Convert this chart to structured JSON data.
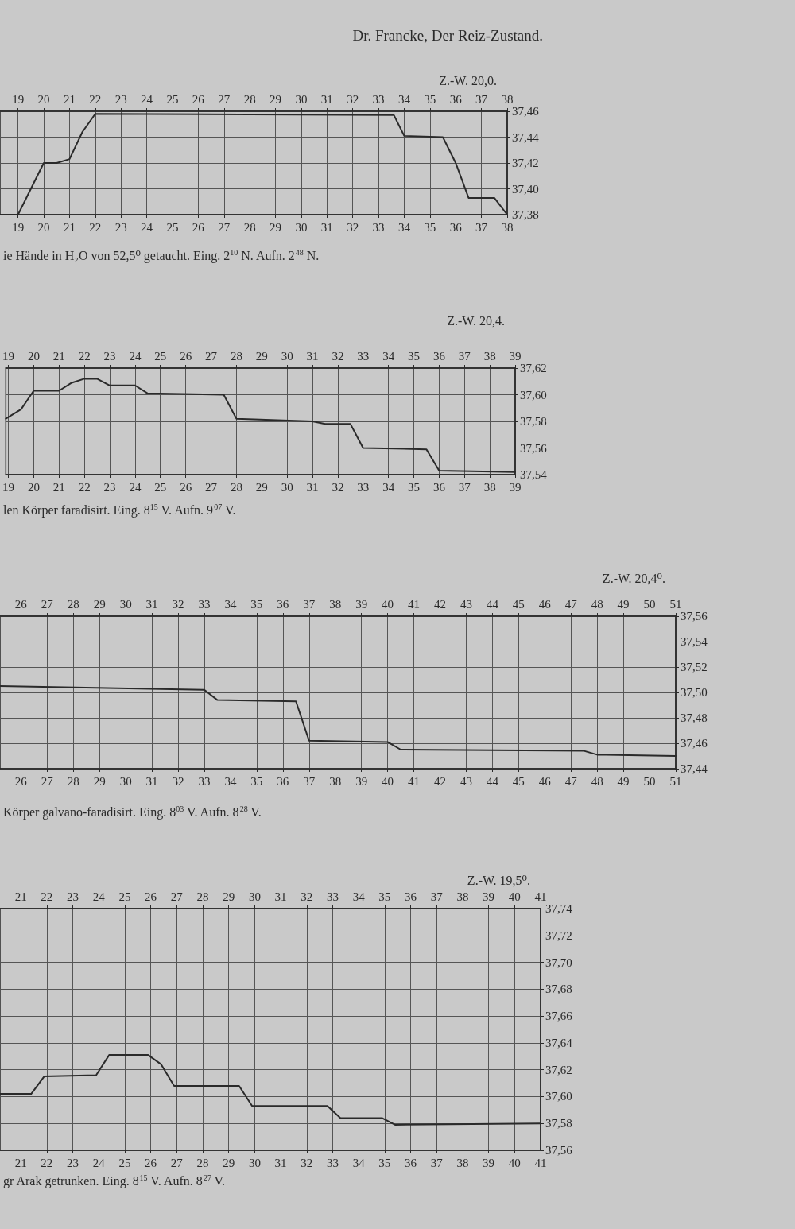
{
  "chart_data": [
    {
      "type": "line",
      "title": "Dr. Francke, Der Reiz-Zustand.",
      "subtitle": "Z.-W. 20,0.",
      "annotations": [
        "ie Hände in H₂O von 52,5⁰ getaucht. Eing. 2$^{10}$ N. Aufn. 2$^{48}$ N."
      ],
      "series": [
        {
          "color": "#2a2a2a",
          "x": [
            18.3,
            19,
            20,
            20.5,
            21,
            21.5,
            22,
            33.6,
            34,
            35.5,
            36,
            36.5,
            37.5,
            38
          ],
          "values": [
            37.38,
            37.38,
            37.42,
            37.42,
            37.423,
            37.444,
            37.458,
            37.457,
            37.441,
            37.44,
            37.42,
            37.393,
            37.393,
            37.38
          ]
        }
      ],
      "xlim": [
        18.3,
        38
      ],
      "xticks": [
        19,
        20,
        21,
        22,
        23,
        24,
        25,
        26,
        27,
        28,
        29,
        30,
        31,
        32,
        33,
        34,
        35,
        36,
        37,
        38
      ],
      "x2lim": [
        18.3,
        38
      ],
      "x2ticks": [
        19,
        20,
        21,
        22,
        23,
        24,
        25,
        26,
        27,
        28,
        29,
        30,
        31,
        32,
        33,
        34,
        35,
        36,
        37,
        38
      ],
      "ylim": [
        37.38,
        37.46
      ],
      "yticks": [
        {
          "value": 37.38,
          "label": "37,38"
        },
        {
          "value": 37.4,
          "label": "37,40"
        },
        {
          "value": 37.42,
          "label": "37,42"
        },
        {
          "value": 37.44,
          "label": "37,44"
        },
        {
          "value": 37.46,
          "label": "37,46"
        }
      ],
      "grid": true,
      "marker": "none"
    },
    {
      "type": "line",
      "subtitle": "Z.-W. 20,4.",
      "annotations": [
        "len Körper faradisirt. Eing. 8$^{15}$ V. Aufn. 9$^{07}$ V."
      ],
      "series": [
        {
          "color": "#2a2a2a",
          "x": [
            18.9,
            19.5,
            20,
            21,
            21.5,
            22,
            22.5,
            23,
            24,
            24.5,
            27.5,
            28,
            31,
            31.5,
            32.5,
            33,
            35.5,
            36,
            39
          ],
          "values": [
            37.582,
            37.589,
            37.603,
            37.603,
            37.609,
            37.612,
            37.612,
            37.607,
            37.607,
            37.601,
            37.6,
            37.582,
            37.58,
            37.578,
            37.578,
            37.56,
            37.559,
            37.543,
            37.542
          ]
        }
      ],
      "xlim": [
        18.9,
        39
      ],
      "xticks": [
        19,
        20,
        21,
        22,
        23,
        24,
        25,
        26,
        27,
        28,
        29,
        30,
        31,
        32,
        33,
        34,
        35,
        36,
        37,
        38,
        39
      ],
      "x2lim": [
        18.9,
        39
      ],
      "x2ticks": [
        19,
        20,
        21,
        22,
        23,
        24,
        25,
        26,
        27,
        28,
        29,
        30,
        31,
        32,
        33,
        34,
        35,
        36,
        37,
        38,
        39
      ],
      "ylim": [
        37.54,
        37.62
      ],
      "yticks": [
        {
          "value": 37.54,
          "label": "37,54"
        },
        {
          "value": 37.56,
          "label": "37,56"
        },
        {
          "value": 37.58,
          "label": "37,58"
        },
        {
          "value": 37.6,
          "label": "37,60"
        },
        {
          "value": 37.62,
          "label": "37,62"
        }
      ],
      "grid": true,
      "marker": "none"
    },
    {
      "type": "line",
      "subtitle": "Z.-W. 20,4⁰.",
      "annotations": [
        "Körper galvano-faradisirt. Eing. 8$^{03}$ V. Aufn. 8$^{28}$ V."
      ],
      "series": [
        {
          "color": "#2a2a2a",
          "x": [
            25.2,
            33,
            33.5,
            36.5,
            37,
            40,
            40.5,
            47.5,
            48,
            51
          ],
          "values": [
            37.505,
            37.502,
            37.494,
            37.493,
            37.462,
            37.461,
            37.455,
            37.454,
            37.451,
            37.45
          ]
        }
      ],
      "xlim": [
        25.2,
        51
      ],
      "xticks": [
        26,
        27,
        28,
        29,
        30,
        31,
        32,
        33,
        34,
        35,
        36,
        37,
        38,
        39,
        40,
        41,
        42,
        43,
        44,
        45,
        46,
        47,
        48,
        49,
        50,
        51
      ],
      "x2lim": [
        25.2,
        51
      ],
      "x2ticks": [
        26,
        27,
        28,
        29,
        30,
        31,
        32,
        33,
        34,
        35,
        36,
        37,
        38,
        39,
        40,
        41,
        42,
        43,
        44,
        45,
        46,
        47,
        48,
        49,
        50,
        51
      ],
      "ylim": [
        37.44,
        37.56
      ],
      "yticks": [
        {
          "value": 37.44,
          "label": "37,44"
        },
        {
          "value": 37.46,
          "label": "37,46"
        },
        {
          "value": 37.48,
          "label": "37,48"
        },
        {
          "value": 37.5,
          "label": "37,50"
        },
        {
          "value": 37.52,
          "label": "37,52"
        },
        {
          "value": 37.54,
          "label": "37,54"
        },
        {
          "value": 37.56,
          "label": "37,56"
        }
      ],
      "grid": true,
      "marker": "none"
    },
    {
      "type": "line",
      "subtitle": "Z.-W. 19,5⁰.",
      "annotations": [
        "gr Arak getrunken. Eing. 8$^{15}$ V. Aufn. 8$^{27}$ V."
      ],
      "series": [
        {
          "color": "#2a2a2a",
          "x": [
            20.2,
            21.4,
            21.9,
            23.9,
            24.4,
            25.9,
            26.4,
            26.9,
            29.4,
            29.9,
            32.8,
            33.3,
            34.9,
            35.4,
            41
          ],
          "values": [
            37.602,
            37.602,
            37.615,
            37.616,
            37.631,
            37.631,
            37.624,
            37.608,
            37.608,
            37.593,
            37.593,
            37.584,
            37.584,
            37.579,
            37.58
          ]
        }
      ],
      "xlim": [
        20.2,
        41
      ],
      "xticks": [
        21,
        22,
        23,
        24,
        25,
        26,
        27,
        28,
        29,
        30,
        31,
        32,
        33,
        34,
        35,
        36,
        37,
        38,
        39,
        40,
        41
      ],
      "x2lim": [
        20.2,
        41
      ],
      "x2ticks": [
        21,
        22,
        23,
        24,
        25,
        26,
        27,
        28,
        29,
        30,
        31,
        32,
        33,
        34,
        35,
        36,
        37,
        38,
        39,
        40,
        41
      ],
      "ylim": [
        37.56,
        37.74
      ],
      "yticks": [
        {
          "value": 37.56,
          "label": "37,56"
        },
        {
          "value": 37.58,
          "label": "37,58"
        },
        {
          "value": 37.6,
          "label": "37,60"
        },
        {
          "value": 37.62,
          "label": "37,62"
        },
        {
          "value": 37.64,
          "label": "37,64"
        },
        {
          "value": 37.66,
          "label": "37,66"
        },
        {
          "value": 37.68,
          "label": "37,68"
        },
        {
          "value": 37.7,
          "label": "37,70"
        },
        {
          "value": 37.72,
          "label": "37,72"
        },
        {
          "value": 37.74,
          "label": "37,74"
        }
      ],
      "grid": true,
      "marker": "none"
    }
  ]
}
